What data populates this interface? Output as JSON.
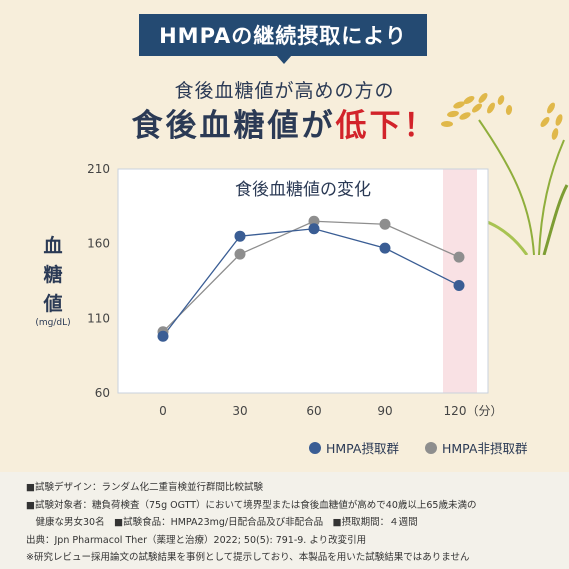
{
  "banner": "HMPAの継続摂取により",
  "subhead": "食後血糖値が高めの方の",
  "headline": {
    "part1": "食後血糖値が",
    "part2": "低下！"
  },
  "y_axis": {
    "label_chars": [
      "血",
      "糖",
      "値"
    ],
    "unit": "(mg/dL)"
  },
  "colors": {
    "background": "#f7eedb",
    "banner": "#244a72",
    "accent_red": "#d2232a",
    "series_hmpa": "#3a5d94",
    "series_non": "#8e8e8e",
    "highlight": "#f9e1e4"
  },
  "chart_data": {
    "type": "line",
    "title": "食後血糖値の変化",
    "x": [
      0,
      30,
      60,
      90,
      120
    ],
    "x_tick_labels": [
      "0",
      "30",
      "60",
      "90",
      "120（分）"
    ],
    "ylim": [
      60,
      210
    ],
    "y_ticks": [
      60,
      110,
      160,
      210
    ],
    "grid": false,
    "legend_placement": "bottom-right",
    "highlight_x": 120,
    "series": [
      {
        "name": "HMPA摂取群",
        "values": [
          98,
          165,
          170,
          157,
          132
        ],
        "color": "#3a5d94"
      },
      {
        "name": "HMPA非摂取群",
        "values": [
          101,
          153,
          175,
          173,
          151
        ],
        "color": "#8e8e8e"
      }
    ]
  },
  "footer": [
    "■試験デザイン：ランダム化二重盲検並行群間比較試験",
    "■試験対象者：糖負荷検査（75g OGTT）において境界型または食後血糖値が高めで40歳以上65歳未満の",
    "　健康な男女30名　■試験食品：HMPA23mg/日配合品及び非配合品　■摂取期間：４週間",
    "出典：Jpn Pharmacol Ther（薬理と治療）2022; 50(5): 791-9. より改変引用",
    "※研究レビュー採用論文の試験結果を事例として提示しており、本製品を用いた試験結果ではありません"
  ]
}
